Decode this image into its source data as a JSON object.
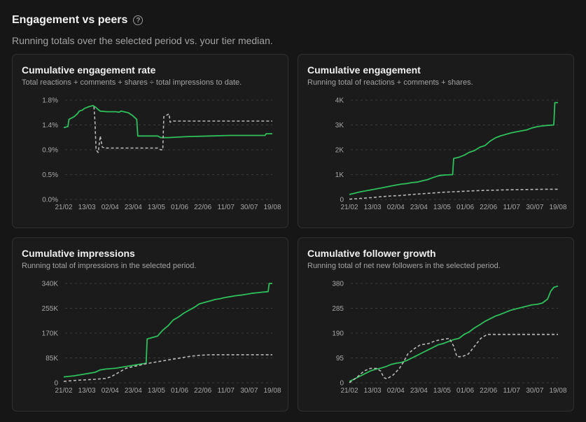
{
  "header": {
    "title": "Engagement vs peers",
    "subtitle": "Running totals over the selected period vs. your tier median."
  },
  "colors": {
    "you": "#2ec05a",
    "median": "#b8b8b8"
  },
  "chart_data": [
    {
      "type": "line",
      "title": "Cumulative engagement rate",
      "subtitle": "Total reactions + comments + shares ÷ total impressions to date.",
      "x_ticks": [
        "21/02",
        "13/03",
        "02/04",
        "23/04",
        "13/05",
        "01/06",
        "22/06",
        "11/07",
        "30/07",
        "19/08"
      ],
      "y_ticks": [
        "0.0%",
        "0.5%",
        "0.9%",
        "1.4%",
        "1.8%"
      ],
      "ylim": [
        0,
        1.8
      ],
      "series": [
        {
          "style": "solid",
          "points": [
            [
              0,
              1.3
            ],
            [
              0.4,
              1.32
            ],
            [
              0.5,
              1.45
            ],
            [
              1.0,
              1.5
            ],
            [
              1.3,
              1.55
            ],
            [
              1.5,
              1.6
            ],
            [
              1.8,
              1.62
            ],
            [
              2.0,
              1.65
            ],
            [
              2.4,
              1.68
            ],
            [
              2.8,
              1.7
            ],
            [
              3.0,
              1.68
            ],
            [
              3.3,
              1.63
            ],
            [
              3.5,
              1.6
            ],
            [
              4.2,
              1.59
            ],
            [
              5.0,
              1.59
            ],
            [
              5.3,
              1.58
            ],
            [
              5.5,
              1.6
            ],
            [
              6.2,
              1.57
            ],
            [
              6.6,
              1.52
            ],
            [
              7.0,
              1.45
            ],
            [
              7.1,
              1.15
            ],
            [
              8.5,
              1.15
            ],
            [
              9.0,
              1.15
            ],
            [
              9.3,
              1.12
            ],
            [
              10,
              1.12
            ],
            [
              12,
              1.14
            ],
            [
              14,
              1.15
            ],
            [
              16,
              1.16
            ],
            [
              18,
              1.16
            ],
            [
              19.3,
              1.16
            ],
            [
              19.4,
              1.19
            ],
            [
              20,
              1.19
            ]
          ]
        },
        {
          "style": "dashed",
          "points": [
            [
              2.9,
              1.68
            ],
            [
              3.0,
              1.4
            ],
            [
              3.1,
              0.9
            ],
            [
              3.3,
              0.85
            ],
            [
              3.5,
              1.15
            ],
            [
              3.7,
              0.95
            ],
            [
              4.0,
              0.93
            ],
            [
              5.0,
              0.93
            ],
            [
              7.0,
              0.93
            ],
            [
              8.5,
              0.93
            ],
            [
              9.0,
              0.93
            ],
            [
              9.3,
              0.9
            ],
            [
              9.5,
              0.9
            ],
            [
              9.6,
              1.5
            ],
            [
              10.1,
              1.55
            ],
            [
              10.2,
              1.4
            ],
            [
              10.5,
              1.42
            ],
            [
              11,
              1.42
            ],
            [
              14,
              1.42
            ],
            [
              18,
              1.42
            ],
            [
              20,
              1.42
            ]
          ]
        }
      ]
    },
    {
      "type": "line",
      "title": "Cumulative engagement",
      "subtitle": "Running total of reactions + comments + shares.",
      "x_ticks": [
        "21/02",
        "13/03",
        "02/04",
        "23/04",
        "13/05",
        "01/06",
        "22/06",
        "11/07",
        "30/07",
        "19/08"
      ],
      "y_ticks": [
        "0",
        "1K",
        "2K",
        "3K",
        "4K"
      ],
      "ylim": [
        0,
        4000
      ],
      "series": [
        {
          "style": "solid",
          "points": [
            [
              0,
              200
            ],
            [
              0.5,
              250
            ],
            [
              1.0,
              300
            ],
            [
              1.5,
              340
            ],
            [
              2.0,
              380
            ],
            [
              2.5,
              420
            ],
            [
              3.0,
              460
            ],
            [
              3.5,
              500
            ],
            [
              4.0,
              540
            ],
            [
              4.5,
              580
            ],
            [
              5.0,
              620
            ],
            [
              5.5,
              640
            ],
            [
              6.0,
              680
            ],
            [
              6.5,
              700
            ],
            [
              7.0,
              750
            ],
            [
              7.5,
              800
            ],
            [
              8.0,
              880
            ],
            [
              8.5,
              950
            ],
            [
              9.0,
              980
            ],
            [
              9.9,
              1000
            ],
            [
              10.0,
              1650
            ],
            [
              10.5,
              1700
            ],
            [
              11.0,
              1780
            ],
            [
              11.5,
              1900
            ],
            [
              12.0,
              1970
            ],
            [
              12.5,
              2100
            ],
            [
              13.0,
              2170
            ],
            [
              13.5,
              2350
            ],
            [
              14.0,
              2480
            ],
            [
              14.5,
              2560
            ],
            [
              15.0,
              2620
            ],
            [
              15.5,
              2680
            ],
            [
              16.0,
              2720
            ],
            [
              16.5,
              2760
            ],
            [
              17.0,
              2800
            ],
            [
              17.5,
              2880
            ],
            [
              18.0,
              2930
            ],
            [
              18.5,
              2960
            ],
            [
              19.0,
              2980
            ],
            [
              19.6,
              3000
            ],
            [
              19.7,
              3900
            ],
            [
              20,
              3900
            ]
          ]
        },
        {
          "style": "dashed",
          "points": [
            [
              0,
              10
            ],
            [
              1.0,
              40
            ],
            [
              2.0,
              70
            ],
            [
              3.0,
              110
            ],
            [
              4.0,
              140
            ],
            [
              5.0,
              160
            ],
            [
              6.0,
              200
            ],
            [
              7.0,
              230
            ],
            [
              8.0,
              260
            ],
            [
              9.0,
              290
            ],
            [
              10.0,
              310
            ],
            [
              11.0,
              330
            ],
            [
              12.0,
              350
            ],
            [
              13.0,
              365
            ],
            [
              14.0,
              375
            ],
            [
              15.0,
              385
            ],
            [
              16.0,
              395
            ],
            [
              17.0,
              400
            ],
            [
              18.0,
              405
            ],
            [
              19.0,
              410
            ],
            [
              20,
              410
            ]
          ]
        }
      ]
    },
    {
      "type": "line",
      "title": "Cumulative impressions",
      "subtitle": "Running total of impressions in the selected period.",
      "x_ticks": [
        "21/02",
        "13/03",
        "02/04",
        "23/04",
        "13/05",
        "01/06",
        "22/06",
        "11/07",
        "30/07",
        "19/08"
      ],
      "y_ticks": [
        "0",
        "85K",
        "170K",
        "255K",
        "340K"
      ],
      "ylim": [
        0,
        340000
      ],
      "series": [
        {
          "style": "solid",
          "points": [
            [
              0,
              20000
            ],
            [
              1.0,
              24000
            ],
            [
              2.0,
              30000
            ],
            [
              3.0,
              36000
            ],
            [
              3.5,
              44000
            ],
            [
              4.0,
              47000
            ],
            [
              5.0,
              50000
            ],
            [
              6.0,
              56000
            ],
            [
              7.0,
              62000
            ],
            [
              7.9,
              67000
            ],
            [
              8.0,
              150000
            ],
            [
              8.5,
              155000
            ],
            [
              9.0,
              160000
            ],
            [
              9.5,
              180000
            ],
            [
              10.0,
              195000
            ],
            [
              10.5,
              215000
            ],
            [
              11.0,
              225000
            ],
            [
              11.5,
              238000
            ],
            [
              12.0,
              248000
            ],
            [
              12.5,
              258000
            ],
            [
              13.0,
              270000
            ],
            [
              13.5,
              275000
            ],
            [
              14.0,
              280000
            ],
            [
              14.5,
              285000
            ],
            [
              15.0,
              288000
            ],
            [
              15.5,
              292000
            ],
            [
              16.0,
              295000
            ],
            [
              16.5,
              298000
            ],
            [
              17.0,
              300000
            ],
            [
              17.5,
              303000
            ],
            [
              18.0,
              306000
            ],
            [
              18.5,
              308000
            ],
            [
              19.0,
              310000
            ],
            [
              19.6,
              312000
            ],
            [
              19.7,
              340000
            ],
            [
              20,
              340000
            ]
          ]
        },
        {
          "style": "dashed",
          "points": [
            [
              0,
              5000
            ],
            [
              1.0,
              8000
            ],
            [
              2.0,
              10000
            ],
            [
              3.0,
              12000
            ],
            [
              4.0,
              15000
            ],
            [
              4.5,
              20000
            ],
            [
              5.0,
              30000
            ],
            [
              5.5,
              40000
            ],
            [
              6.0,
              50000
            ],
            [
              7.0,
              58000
            ],
            [
              8.0,
              66000
            ],
            [
              9.0,
              72000
            ],
            [
              10.0,
              78000
            ],
            [
              11.0,
              84000
            ],
            [
              12.0,
              90000
            ],
            [
              13.0,
              94000
            ],
            [
              14.0,
              96000
            ],
            [
              16.0,
              96000
            ],
            [
              18.0,
              96000
            ],
            [
              20,
              96000
            ]
          ]
        }
      ]
    },
    {
      "type": "line",
      "title": "Cumulative follower growth",
      "subtitle": "Running total of net new followers in the selected period.",
      "x_ticks": [
        "21/02",
        "13/03",
        "02/04",
        "23/04",
        "13/05",
        "01/06",
        "22/06",
        "11/07",
        "30/07",
        "19/08"
      ],
      "y_ticks": [
        "0",
        "95",
        "190",
        "285",
        "380"
      ],
      "ylim": [
        0,
        380
      ],
      "series": [
        {
          "style": "solid",
          "points": [
            [
              0,
              5
            ],
            [
              0.5,
              15
            ],
            [
              1.0,
              25
            ],
            [
              1.5,
              35
            ],
            [
              2.0,
              45
            ],
            [
              2.5,
              52
            ],
            [
              3.0,
              56
            ],
            [
              3.5,
              62
            ],
            [
              4.0,
              70
            ],
            [
              4.5,
              75
            ],
            [
              5.0,
              78
            ],
            [
              5.5,
              85
            ],
            [
              6.0,
              95
            ],
            [
              6.5,
              105
            ],
            [
              7.0,
              115
            ],
            [
              7.5,
              125
            ],
            [
              8.0,
              135
            ],
            [
              8.5,
              145
            ],
            [
              9.0,
              150
            ],
            [
              9.5,
              158
            ],
            [
              10.0,
              165
            ],
            [
              10.5,
              170
            ],
            [
              11.0,
              185
            ],
            [
              11.5,
              195
            ],
            [
              12.0,
              210
            ],
            [
              12.5,
              222
            ],
            [
              13.0,
              235
            ],
            [
              13.5,
              245
            ],
            [
              14.0,
              255
            ],
            [
              14.5,
              262
            ],
            [
              15.0,
              270
            ],
            [
              15.5,
              278
            ],
            [
              16.0,
              283
            ],
            [
              16.5,
              288
            ],
            [
              17.0,
              293
            ],
            [
              17.5,
              298
            ],
            [
              18.0,
              300
            ],
            [
              18.5,
              305
            ],
            [
              19.0,
              320
            ],
            [
              19.3,
              350
            ],
            [
              19.6,
              365
            ],
            [
              20,
              370
            ]
          ]
        },
        {
          "style": "dashed",
          "points": [
            [
              0,
              0
            ],
            [
              0.7,
              20
            ],
            [
              1.4,
              45
            ],
            [
              2.0,
              55
            ],
            [
              2.6,
              55
            ],
            [
              3.0,
              45
            ],
            [
              3.3,
              20
            ],
            [
              3.6,
              15
            ],
            [
              4.2,
              30
            ],
            [
              4.8,
              55
            ],
            [
              5.2,
              80
            ],
            [
              5.6,
              110
            ],
            [
              6.2,
              130
            ],
            [
              6.8,
              145
            ],
            [
              7.6,
              150
            ],
            [
              8.2,
              160
            ],
            [
              8.8,
              165
            ],
            [
              9.6,
              170
            ],
            [
              10.0,
              140
            ],
            [
              10.3,
              100
            ],
            [
              10.8,
              100
            ],
            [
              11.4,
              110
            ],
            [
              12.0,
              140
            ],
            [
              12.6,
              170
            ],
            [
              13.2,
              185
            ],
            [
              14.0,
              185
            ],
            [
              16.0,
              185
            ],
            [
              18.0,
              185
            ],
            [
              20,
              185
            ]
          ]
        }
      ]
    }
  ]
}
